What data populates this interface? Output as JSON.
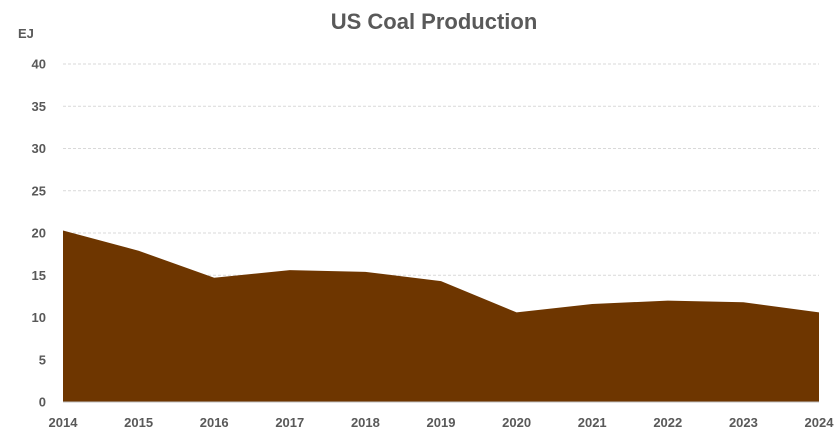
{
  "chart_data": {
    "type": "area",
    "title": "US Coal Production",
    "ylabel": "EJ",
    "xlabel": "",
    "x": [
      "2014",
      "2015",
      "2016",
      "2017",
      "2018",
      "2019",
      "2020",
      "2021",
      "2022",
      "2023",
      "2024"
    ],
    "series": [
      {
        "values": [
          20.3,
          17.9,
          14.7,
          15.6,
          15.4,
          14.3,
          10.6,
          11.6,
          12.0,
          11.8,
          10.6
        ]
      }
    ],
    "ylim": [
      0,
      40
    ],
    "yticks": [
      "0",
      "5",
      "10",
      "15",
      "20",
      "25",
      "30",
      "35",
      "40"
    ],
    "grid": true,
    "legend": "none",
    "colors": {
      "fill": "#6e3600",
      "grid": "#d9d9d9",
      "text": "#595959"
    }
  }
}
